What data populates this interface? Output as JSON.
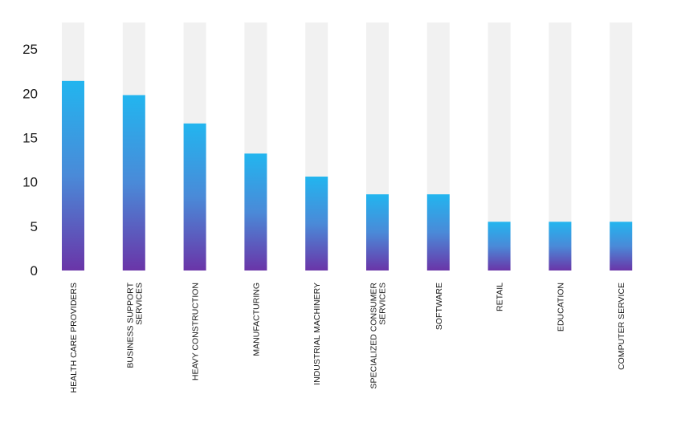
{
  "chart_data": {
    "type": "bar",
    "categories": [
      [
        "HEALTH CARE PROVIDERS"
      ],
      [
        "BUSINESS SUPPORT",
        "SERVICES"
      ],
      [
        "HEAVY CONSTRUCTION"
      ],
      [
        "MANUFACTURING"
      ],
      [
        "INDUSTRIAL MACHINERY"
      ],
      [
        "SPECIALIZED CONSUMER",
        "SERVICES"
      ],
      [
        "SOFTWARE"
      ],
      [
        "RETAIL"
      ],
      [
        "EDUCATION"
      ],
      [
        "COMPUTER SERVICE"
      ]
    ],
    "values": [
      21.4,
      19.8,
      16.6,
      13.2,
      10.6,
      8.6,
      8.6,
      5.5,
      5.5,
      5.5
    ],
    "ylim": [
      0,
      28
    ],
    "yticks": [
      0,
      5,
      10,
      15,
      20,
      25
    ],
    "title": "",
    "xlabel": "",
    "ylabel": "",
    "grid": false,
    "legend": "none",
    "colors": {
      "bar_top": "#22b5ef",
      "bar_mid": "#4a8ad8",
      "bar_bottom": "#6a35a8",
      "track": "#f1f1f1",
      "text": "#1a1a1a"
    }
  }
}
